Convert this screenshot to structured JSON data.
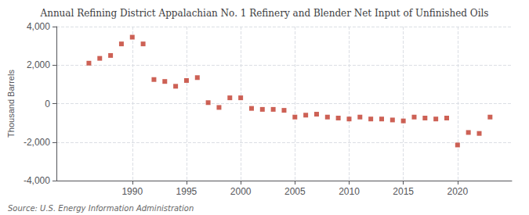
{
  "chart_data": {
    "type": "scatter",
    "title": "Annual Refining District Appalachian No. 1 Refinery and Blender Net Input of Unfinished Oils",
    "ylabel": "Thousand Barrels",
    "annotations": [
      "Source: U.S. Energy Information Administration"
    ],
    "x": [
      1986,
      1987,
      1988,
      1989,
      1990,
      1991,
      1992,
      1993,
      1994,
      1995,
      1996,
      1997,
      1998,
      1999,
      2000,
      2001,
      2002,
      2003,
      2004,
      2005,
      2006,
      2007,
      2008,
      2009,
      2010,
      2011,
      2012,
      2013,
      2014,
      2015,
      2016,
      2017,
      2018,
      2019,
      2020,
      2021,
      2022,
      2023
    ],
    "values": [
      2100,
      2350,
      2500,
      3100,
      3450,
      3100,
      1250,
      1150,
      900,
      1200,
      1350,
      50,
      -200,
      300,
      300,
      -250,
      -300,
      -300,
      -350,
      -700,
      -600,
      -550,
      -700,
      -750,
      -800,
      -700,
      -800,
      -800,
      -850,
      -900,
      -700,
      -750,
      -800,
      -750,
      -2150,
      -1500,
      -1550,
      -700
    ],
    "color": "#c0392b",
    "marker": "square",
    "xlim": [
      1983,
      2025
    ],
    "xticks": [
      1990,
      1995,
      2000,
      2005,
      2010,
      2015,
      2020
    ],
    "ylim": [
      -4000,
      4000
    ],
    "yticks": [
      {
        "value": -4000,
        "label": "-4,000"
      },
      {
        "value": -2000,
        "label": "-2,000"
      },
      0,
      {
        "value": 2000,
        "label": "2,000"
      },
      {
        "value": 4000,
        "label": "4,000"
      }
    ],
    "grid": true
  }
}
